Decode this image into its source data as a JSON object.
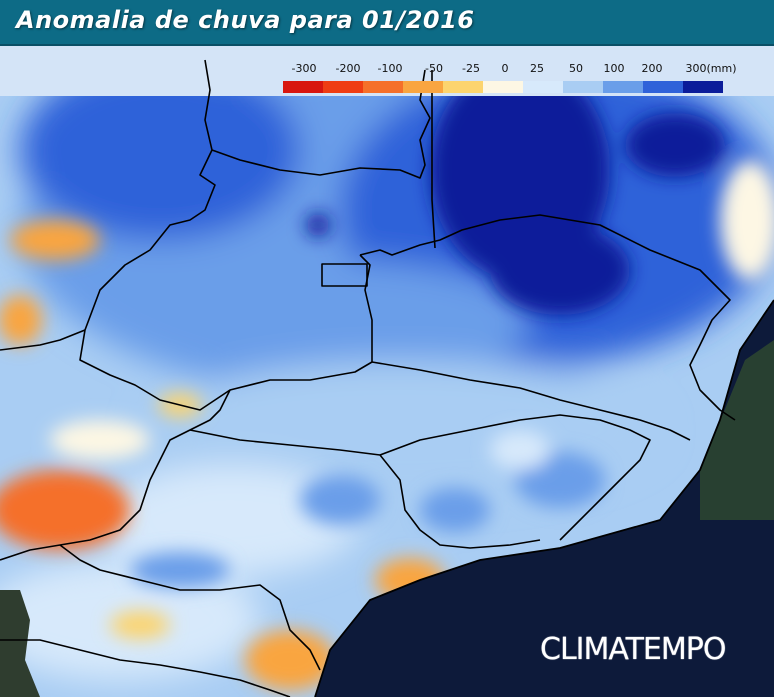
{
  "title": "Anomalia de chuva para 01/2016",
  "legend": {
    "labels": [
      "-300",
      "-200",
      "-100",
      "-50",
      "-25",
      "0",
      "25",
      "50",
      "100",
      "200",
      "300(mm)"
    ],
    "colors": [
      "#d8160f",
      "#ef3d13",
      "#f5702a",
      "#f9a540",
      "#fcd46e",
      "#fdf7e4",
      "#d7e9fb",
      "#a9cdf3",
      "#6a9ee9",
      "#2f62d9",
      "#0b1c9a"
    ]
  },
  "brand": "CLIMATEMPO",
  "colors": {
    "title_bar": "#0d6b86",
    "ocean": "#0d1a3a",
    "no_data": "#2f3d2f"
  }
}
